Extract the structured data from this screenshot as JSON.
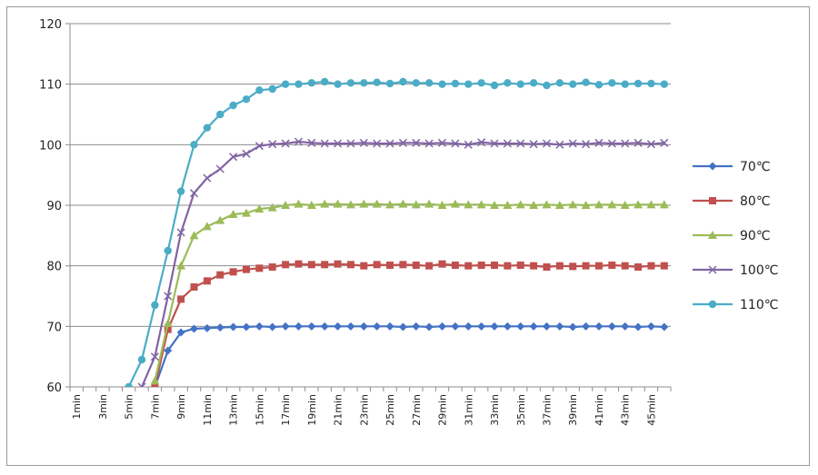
{
  "chart_data": {
    "type": "line",
    "title": "",
    "xlabel": "",
    "ylabel": "",
    "ylim": [
      60,
      120
    ],
    "yticks": [
      60,
      70,
      80,
      90,
      100,
      110,
      120
    ],
    "grid": "horizontal",
    "legend_position": "right",
    "categories": [
      "1min",
      "2min",
      "3min",
      "4min",
      "5min",
      "6min",
      "7min",
      "8min",
      "9min",
      "10min",
      "11min",
      "12min",
      "13min",
      "14min",
      "15min",
      "16min",
      "17min",
      "18min",
      "19min",
      "20min",
      "21min",
      "22min",
      "23min",
      "24min",
      "25min",
      "26min",
      "27min",
      "28min",
      "29min",
      "30min",
      "31min",
      "32min",
      "33min",
      "34min",
      "35min",
      "36min",
      "37min",
      "38min",
      "39min",
      "40min",
      "41min",
      "42min",
      "43min",
      "44min",
      "45min",
      "46min"
    ],
    "tick_labels": [
      "1min",
      "3min",
      "5min",
      "7min",
      "9min",
      "11min",
      "13min",
      "15min",
      "17min",
      "19min",
      "21min",
      "23min",
      "25min",
      "27min",
      "29min",
      "31min",
      "33min",
      "35min",
      "37min",
      "39min",
      "41min",
      "43min",
      "45min"
    ],
    "series": [
      {
        "name": "70℃",
        "color": "#4472c4",
        "marker": "diamond",
        "values": [
          null,
          null,
          null,
          null,
          null,
          null,
          60,
          66,
          69,
          69.6,
          69.7,
          69.8,
          69.9,
          69.9,
          70,
          69.9,
          70,
          70,
          70,
          70,
          70,
          70,
          70,
          70,
          70,
          69.9,
          70,
          69.9,
          70,
          70,
          70,
          70,
          70,
          70,
          70,
          70,
          70,
          70,
          69.9,
          70,
          70,
          70,
          70,
          69.9,
          70,
          69.9
        ]
      },
      {
        "name": "80℃",
        "color": "#c0504d",
        "marker": "square",
        "values": [
          null,
          null,
          null,
          null,
          null,
          null,
          60,
          69.5,
          74.5,
          76.5,
          77.5,
          78.5,
          79,
          79.4,
          79.6,
          79.8,
          80.2,
          80.3,
          80.2,
          80.2,
          80.3,
          80.2,
          80,
          80.2,
          80.1,
          80.2,
          80.1,
          80,
          80.3,
          80.1,
          80,
          80.1,
          80.1,
          80,
          80.1,
          80,
          79.8,
          80,
          79.9,
          80,
          80,
          80.1,
          80,
          79.8,
          80,
          80
        ]
      },
      {
        "name": "90℃",
        "color": "#9bbb59",
        "marker": "triangle",
        "values": [
          null,
          null,
          null,
          null,
          null,
          null,
          61,
          70.5,
          80,
          85,
          86.5,
          87.5,
          88.5,
          88.7,
          89.4,
          89.6,
          90,
          90.2,
          90,
          90.2,
          90.2,
          90.1,
          90.2,
          90.2,
          90.1,
          90.2,
          90.1,
          90.2,
          90,
          90.2,
          90.1,
          90.1,
          90,
          90,
          90.1,
          90,
          90.1,
          90,
          90.1,
          90,
          90.1,
          90.1,
          90,
          90.1,
          90.1,
          90.1
        ]
      },
      {
        "name": "100℃",
        "color": "#8064a2",
        "marker": "x",
        "values": [
          null,
          null,
          null,
          null,
          null,
          60,
          65,
          75,
          85.5,
          92,
          94.5,
          96,
          98,
          98.5,
          99.8,
          100.1,
          100.2,
          100.5,
          100.3,
          100.2,
          100.2,
          100.2,
          100.3,
          100.2,
          100.2,
          100.3,
          100.3,
          100.2,
          100.3,
          100.2,
          100,
          100.4,
          100.2,
          100.2,
          100.2,
          100.1,
          100.2,
          100,
          100.2,
          100.1,
          100.3,
          100.2,
          100.2,
          100.3,
          100.1,
          100.3
        ]
      },
      {
        "name": "110℃",
        "color": "#4bacc6",
        "marker": "circle",
        "values": [
          null,
          null,
          null,
          null,
          60,
          64.5,
          73.5,
          82.5,
          92.3,
          100,
          102.8,
          105,
          106.5,
          107.5,
          109,
          109.2,
          110,
          110,
          110.2,
          110.4,
          110,
          110.2,
          110.2,
          110.3,
          110.1,
          110.4,
          110.2,
          110.2,
          110,
          110.1,
          110,
          110.2,
          109.8,
          110.2,
          110,
          110.2,
          109.8,
          110.2,
          110,
          110.3,
          109.9,
          110.2,
          110,
          110.1,
          110.1,
          110
        ]
      }
    ]
  }
}
